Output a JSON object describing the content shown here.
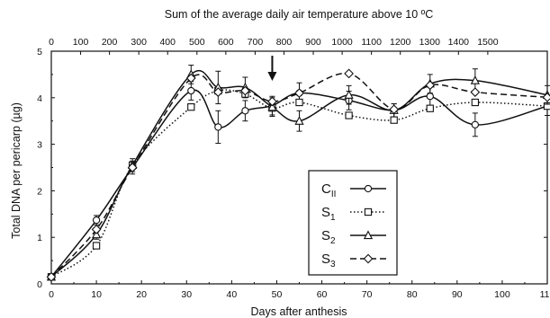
{
  "chart_data": {
    "type": "line",
    "title": "",
    "xlabel": "Days after anthesis",
    "ylabel": "Total DNA per pericarp (µg)",
    "top_axis_label": "Sum of the average daily air temperature above 10 ºC",
    "xlim": [
      0,
      110
    ],
    "ylim": [
      0,
      5
    ],
    "x_ticks": [
      "0",
      "10",
      "20",
      "30",
      "40",
      "50",
      "60",
      "70",
      "80",
      "90",
      "100",
      "110"
    ],
    "y_ticks": [
      "0",
      "1",
      "2",
      "3",
      "4",
      "5"
    ],
    "top_ticks": [
      "0",
      "100",
      "200",
      "300",
      "400",
      "500",
      "600",
      "700",
      "800",
      "900",
      "1000",
      "1100",
      "1200",
      "1300",
      "1400",
      "1500"
    ],
    "top_tick_day_positions": [
      0,
      6.5,
      12.9,
      19.4,
      25.8,
      32.3,
      38.7,
      45.2,
      51.6,
      58.1,
      64.5,
      71.0,
      77.4,
      83.9,
      90.3,
      96.8
    ],
    "arrow_at_day": 49,
    "legend": {
      "position": "center-right"
    },
    "x": [
      0,
      10,
      18,
      31,
      37,
      43,
      49,
      55,
      66,
      76,
      84,
      94,
      110
    ],
    "series": [
      {
        "name": "CII",
        "marker": "circle",
        "line": "solid",
        "values": [
          0.15,
          1.37,
          2.5,
          4.15,
          3.37,
          3.72,
          3.83,
          4.1,
          3.94,
          3.73,
          4.03,
          3.42,
          3.82
        ]
      },
      {
        "name": "S1",
        "marker": "square",
        "line": "dotted",
        "values": [
          0.15,
          0.82,
          2.55,
          3.8,
          4.15,
          4.08,
          3.78,
          3.9,
          3.62,
          3.52,
          3.77,
          3.9,
          3.82
        ]
      },
      {
        "name": "S2",
        "marker": "triangle",
        "line": "solid",
        "values": [
          0.15,
          1.06,
          2.55,
          4.5,
          4.22,
          4.22,
          3.8,
          3.5,
          4.06,
          3.73,
          4.3,
          4.37,
          4.06
        ]
      },
      {
        "name": "S3",
        "marker": "diamond",
        "line": "dashed",
        "values": [
          0.15,
          1.17,
          2.5,
          4.42,
          4.12,
          4.15,
          3.92,
          4.1,
          4.52,
          3.75,
          4.27,
          4.12,
          4.01
        ]
      }
    ],
    "error_bars": [
      0.05,
      0.1,
      0.14,
      0.2,
      0.35,
      0.22,
      0.2,
      0.22,
      0.2,
      0.14,
      0.2,
      0.25,
      0.2
    ]
  },
  "legend_labels": {
    "CII": {
      "main": "C",
      "sub": "II"
    },
    "S1": {
      "main": "S",
      "sub": "1"
    },
    "S2": {
      "main": "S",
      "sub": "2"
    },
    "S3": {
      "main": "S",
      "sub": "3"
    }
  }
}
